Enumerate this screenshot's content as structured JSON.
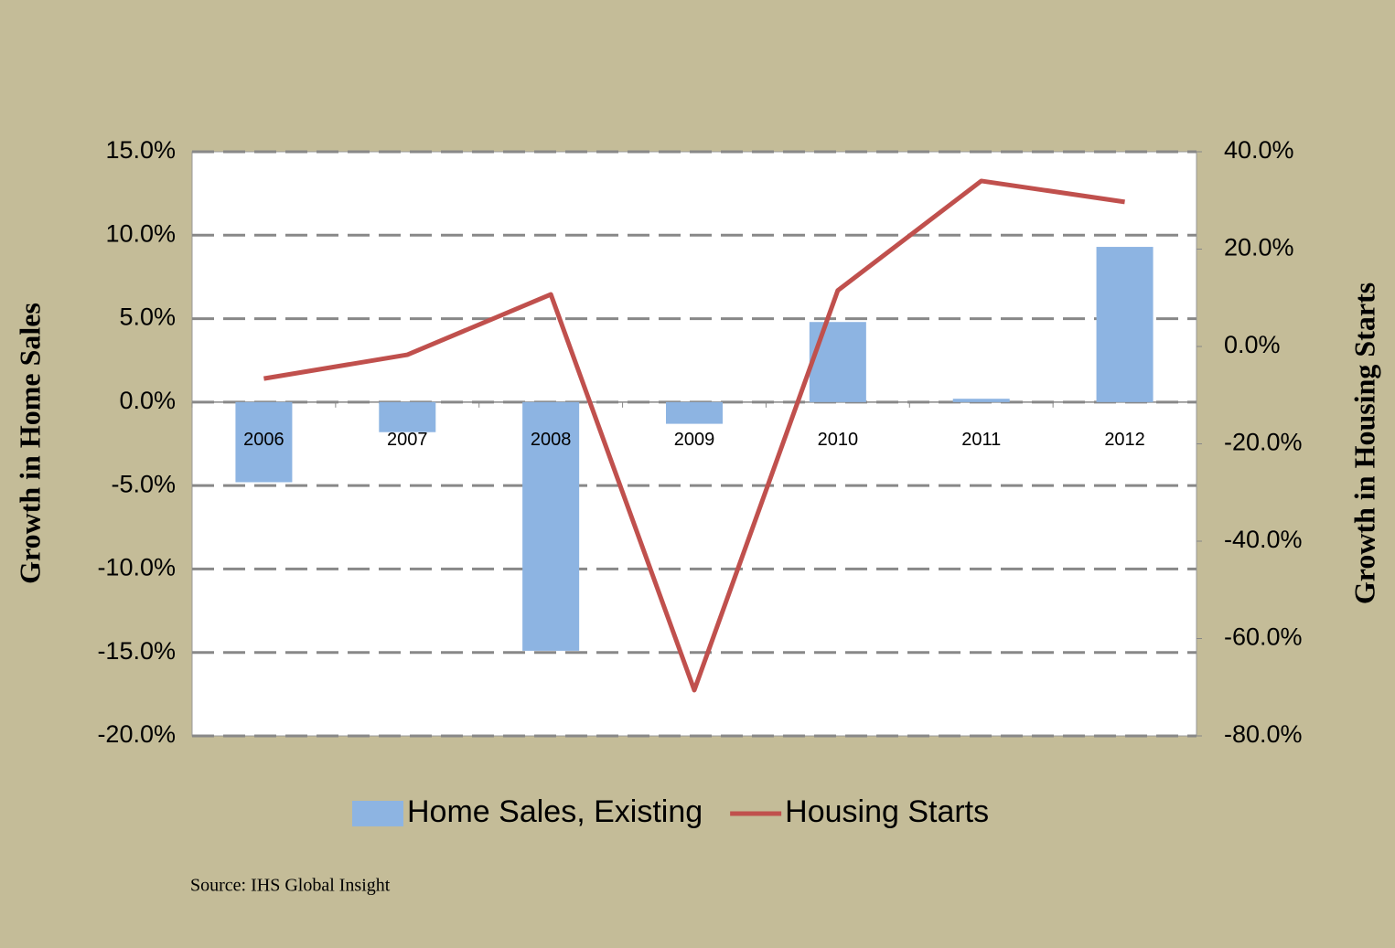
{
  "chart_data": {
    "type": "bar_line",
    "y_label": "Growth in Home Sales",
    "y2_label": "Growth in Housing Starts",
    "source": "Source: IHS Global Insight",
    "categories": [
      "2006",
      "2007",
      "2008",
      "2009",
      "2010",
      "2011",
      "2012"
    ],
    "series": [
      {
        "name": "Home Sales, Existing",
        "type": "bar",
        "color": "#8db4e2",
        "values": [
          -4.8,
          -1.8,
          -14.9,
          -1.3,
          4.8,
          0.2,
          9.3
        ]
      },
      {
        "name": "Housing Starts",
        "type": "line",
        "axis": "y2",
        "color": "#c0504d",
        "values": [
          -6.6,
          -1.7,
          10.7,
          -70.6,
          11.5,
          34.0,
          29.7
        ]
      }
    ],
    "ylim": [
      -20,
      15
    ],
    "yticks": [
      {
        "value": -20,
        "label": "-20.0%"
      },
      {
        "value": -15,
        "label": "-15.0%"
      },
      {
        "value": -10,
        "label": "-10.0%"
      },
      {
        "value": -5,
        "label": "-5.0%"
      },
      {
        "value": 0,
        "label": "0.0%"
      },
      {
        "value": 5,
        "label": "5.0%"
      },
      {
        "value": 10,
        "label": "10.0%"
      },
      {
        "value": 15,
        "label": "15.0%"
      }
    ],
    "y2lim": [
      -80,
      40
    ],
    "y2ticks": [
      {
        "value": -80,
        "label": "-80.0%"
      },
      {
        "value": -60,
        "label": "-60.0%"
      },
      {
        "value": -40,
        "label": "-40.0%"
      },
      {
        "value": -20,
        "label": "-20.0%"
      },
      {
        "value": 0,
        "label": "0.0%"
      },
      {
        "value": 20,
        "label": "20.0%"
      },
      {
        "value": 40,
        "label": "40.0%"
      }
    ],
    "grid": true,
    "legend": "bottom"
  }
}
